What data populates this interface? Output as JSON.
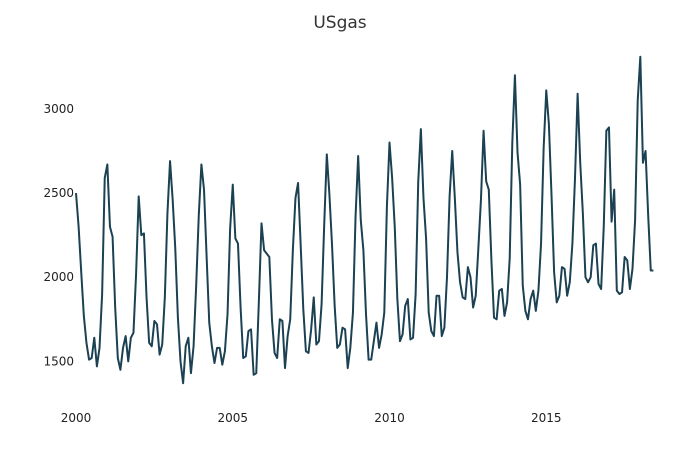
{
  "chart_data": {
    "type": "line",
    "title": "USgas",
    "xlabel": "",
    "ylabel": "",
    "x_ticks": [
      "2000",
      "2005",
      "2010",
      "2015"
    ],
    "y_ticks": [
      "1500",
      "2000",
      "2500",
      "3000"
    ],
    "xlim": [
      2000.0,
      2018.5
    ],
    "ylim": [
      1300,
      3350
    ],
    "grid": false,
    "line_color": "#1b4153",
    "series": [
      {
        "x_start_year": 2000,
        "x_start_month": 1,
        "frequency": "monthly",
        "values": [
          2500,
          2300,
          2030,
          1770,
          1610,
          1510,
          1520,
          1640,
          1470,
          1580,
          1900,
          2590,
          2670,
          2300,
          2240,
          1820,
          1520,
          1450,
          1580,
          1650,
          1500,
          1640,
          1670,
          2020,
          2480,
          2250,
          2260,
          1880,
          1610,
          1590,
          1740,
          1720,
          1540,
          1600,
          1880,
          2380,
          2690,
          2460,
          2170,
          1760,
          1500,
          1370,
          1590,
          1640,
          1430,
          1590,
          1950,
          2370,
          2670,
          2520,
          2120,
          1730,
          1590,
          1490,
          1580,
          1580,
          1480,
          1560,
          1780,
          2290,
          2550,
          2230,
          2200,
          1820,
          1520,
          1530,
          1680,
          1690,
          1420,
          1430,
          1860,
          2320,
          2160,
          2140,
          2120,
          1750,
          1550,
          1520,
          1750,
          1740,
          1460,
          1650,
          1750,
          2160,
          2470,
          2560,
          2190,
          1810,
          1560,
          1550,
          1690,
          1880,
          1600,
          1620,
          1840,
          2310,
          2730,
          2490,
          2190,
          1830,
          1580,
          1600,
          1700,
          1690,
          1460,
          1580,
          1790,
          2360,
          2720,
          2340,
          2160,
          1780,
          1510,
          1510,
          1620,
          1730,
          1580,
          1660,
          1790,
          2420,
          2800,
          2590,
          2300,
          1870,
          1620,
          1660,
          1830,
          1870,
          1630,
          1640,
          1900,
          2570,
          2880,
          2470,
          2230,
          1790,
          1680,
          1650,
          1890,
          1890,
          1650,
          1700,
          2000,
          2480,
          2750,
          2470,
          2150,
          1970,
          1880,
          1870,
          2060,
          2000,
          1820,
          1890,
          2170,
          2460,
          2870,
          2570,
          2520,
          2100,
          1760,
          1750,
          1920,
          1930,
          1770,
          1850,
          2110,
          2800,
          3200,
          2740,
          2550,
          1950,
          1800,
          1750,
          1870,
          1920,
          1800,
          1920,
          2200,
          2770,
          3110,
          2910,
          2490,
          2030,
          1850,
          1890,
          2060,
          2050,
          1890,
          1970,
          2200,
          2590,
          3090,
          2680,
          2380,
          2000,
          1970,
          2000,
          2190,
          2200,
          1960,
          1930,
          2300,
          2870,
          2890,
          2330,
          2520,
          1920,
          1900,
          1910,
          2120,
          2100,
          1930,
          2050,
          2340,
          3050,
          3310,
          2680,
          2750,
          2370,
          2040,
          2040
        ]
      }
    ]
  }
}
